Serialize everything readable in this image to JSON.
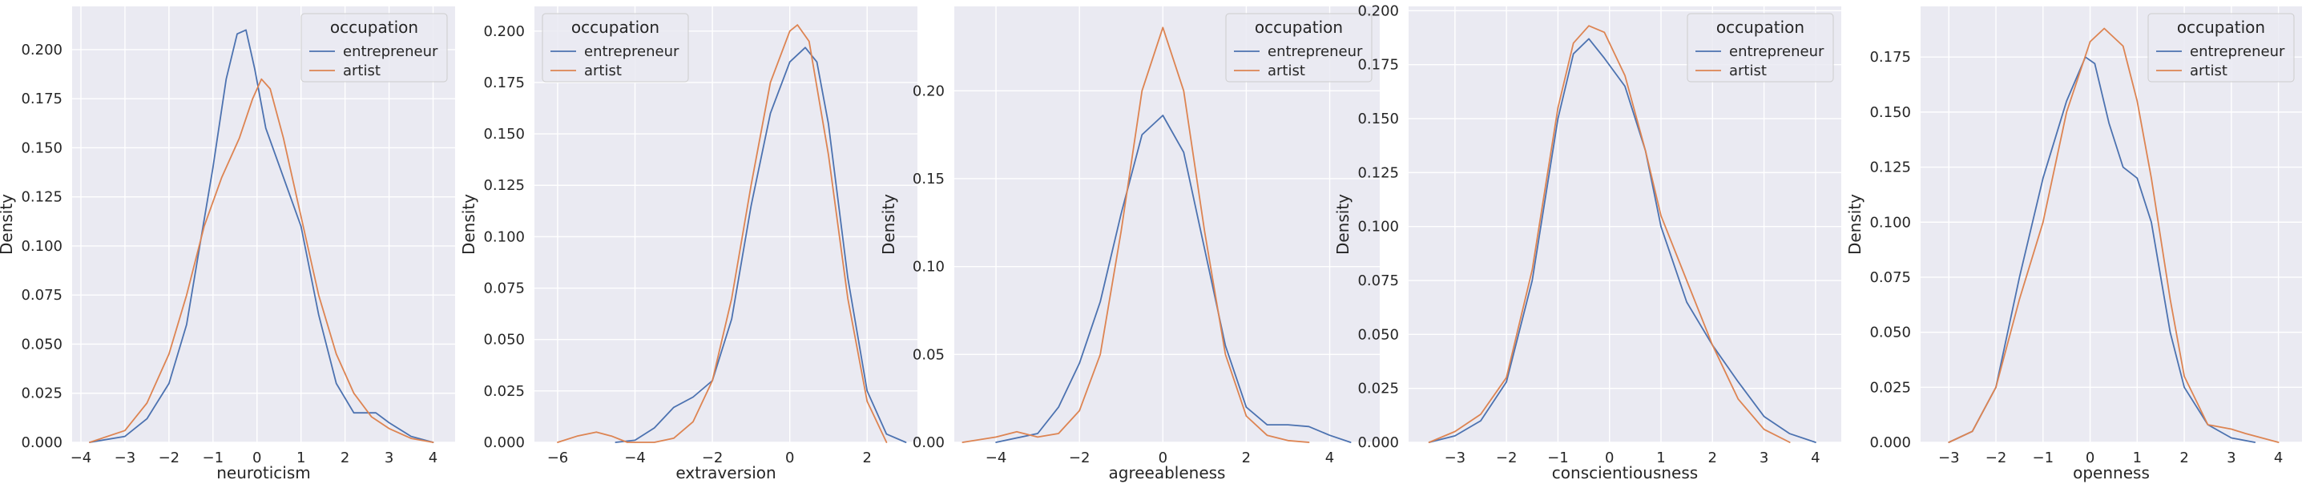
{
  "legend_title": "occupation",
  "chart_data": [
    {
      "type": "line",
      "xlabel": "neuroticism",
      "ylabel": "Density",
      "xlim": [
        -4.2,
        4.5
      ],
      "ylim": [
        0,
        0.222
      ],
      "xticks": [
        -4,
        -3,
        -2,
        -1,
        0,
        1,
        2,
        3,
        4
      ],
      "yticks": [
        0.0,
        0.025,
        0.05,
        0.075,
        0.1,
        0.125,
        0.15,
        0.175,
        0.2
      ],
      "ytick_labels": [
        "0.000",
        "0.025",
        "0.050",
        "0.075",
        "0.100",
        "0.125",
        "0.150",
        "0.175",
        "0.200"
      ],
      "grid": true,
      "legend_position": "top-right",
      "series": [
        {
          "name": "entrepreneur",
          "color": "#4c72b0",
          "x": [
            -3.8,
            -3.0,
            -2.5,
            -2.0,
            -1.6,
            -1.3,
            -1.0,
            -0.7,
            -0.45,
            -0.25,
            -0.05,
            0.2,
            0.6,
            1.0,
            1.4,
            1.8,
            2.2,
            2.5,
            2.7,
            3.0,
            3.5,
            4.0
          ],
          "y": [
            0.0,
            0.003,
            0.012,
            0.03,
            0.06,
            0.1,
            0.14,
            0.185,
            0.208,
            0.21,
            0.19,
            0.16,
            0.135,
            0.11,
            0.065,
            0.03,
            0.015,
            0.015,
            0.015,
            0.01,
            0.003,
            0.0
          ]
        },
        {
          "name": "artist",
          "color": "#dd8452",
          "x": [
            -3.8,
            -3.0,
            -2.5,
            -2.0,
            -1.6,
            -1.2,
            -0.8,
            -0.4,
            -0.1,
            0.1,
            0.3,
            0.6,
            1.0,
            1.4,
            1.8,
            2.2,
            2.6,
            3.0,
            3.5,
            4.0
          ],
          "y": [
            0.0,
            0.006,
            0.02,
            0.045,
            0.075,
            0.11,
            0.135,
            0.155,
            0.175,
            0.185,
            0.18,
            0.155,
            0.115,
            0.075,
            0.045,
            0.025,
            0.013,
            0.007,
            0.002,
            0.0
          ]
        }
      ]
    },
    {
      "type": "line",
      "xlabel": "extraversion",
      "ylabel": "Density",
      "xlim": [
        -6.6,
        3.3
      ],
      "ylim": [
        0,
        0.212
      ],
      "xticks": [
        -6,
        -4,
        -2,
        0,
        2
      ],
      "yticks": [
        0.0,
        0.025,
        0.05,
        0.075,
        0.1,
        0.125,
        0.15,
        0.175,
        0.2
      ],
      "ytick_labels": [
        "0.000",
        "0.025",
        "0.050",
        "0.075",
        "0.100",
        "0.125",
        "0.150",
        "0.175",
        "0.200"
      ],
      "grid": true,
      "legend_position": "top-left",
      "series": [
        {
          "name": "entrepreneur",
          "color": "#4c72b0",
          "x": [
            -4.5,
            -4.0,
            -3.5,
            -3.0,
            -2.5,
            -2.0,
            -1.5,
            -1.0,
            -0.5,
            0.0,
            0.4,
            0.7,
            1.0,
            1.5,
            2.0,
            2.5,
            3.0
          ],
          "y": [
            0.0,
            0.001,
            0.007,
            0.017,
            0.022,
            0.03,
            0.06,
            0.115,
            0.16,
            0.185,
            0.192,
            0.185,
            0.155,
            0.08,
            0.025,
            0.004,
            0.0
          ]
        },
        {
          "name": "artist",
          "color": "#dd8452",
          "x": [
            -6.0,
            -5.5,
            -5.0,
            -4.6,
            -4.2,
            -3.5,
            -3.0,
            -2.5,
            -2.0,
            -1.5,
            -1.0,
            -0.5,
            0.0,
            0.2,
            0.5,
            1.0,
            1.5,
            2.0,
            2.5
          ],
          "y": [
            0.0,
            0.003,
            0.005,
            0.003,
            0.0,
            0.0,
            0.002,
            0.01,
            0.03,
            0.07,
            0.125,
            0.175,
            0.2,
            0.203,
            0.195,
            0.14,
            0.07,
            0.02,
            0.0
          ]
        }
      ]
    },
    {
      "type": "line",
      "xlabel": "agreeableness",
      "ylabel": "Density",
      "xlim": [
        -5.0,
        5.2
      ],
      "ylim": [
        0,
        0.248
      ],
      "xticks": [
        -4,
        -2,
        0,
        2,
        4
      ],
      "yticks": [
        0.0,
        0.05,
        0.1,
        0.15,
        0.2
      ],
      "ytick_labels": [
        "0.00",
        "0.05",
        "0.10",
        "0.15",
        "0.20"
      ],
      "grid": true,
      "legend_position": "top-right",
      "series": [
        {
          "name": "entrepreneur",
          "color": "#4c72b0",
          "x": [
            -4.0,
            -3.0,
            -2.5,
            -2.0,
            -1.5,
            -1.0,
            -0.5,
            0.0,
            0.5,
            1.0,
            1.5,
            2.0,
            2.5,
            3.0,
            3.5,
            4.0,
            4.5
          ],
          "y": [
            0.0,
            0.005,
            0.02,
            0.045,
            0.08,
            0.13,
            0.175,
            0.186,
            0.165,
            0.11,
            0.055,
            0.02,
            0.01,
            0.01,
            0.009,
            0.004,
            0.0
          ]
        },
        {
          "name": "artist",
          "color": "#dd8452",
          "x": [
            -4.8,
            -4.0,
            -3.5,
            -3.0,
            -2.5,
            -2.0,
            -1.5,
            -1.0,
            -0.5,
            0.0,
            0.5,
            1.0,
            1.5,
            2.0,
            2.5,
            3.0,
            3.5
          ],
          "y": [
            0.0,
            0.003,
            0.006,
            0.003,
            0.005,
            0.018,
            0.05,
            0.12,
            0.2,
            0.236,
            0.2,
            0.12,
            0.05,
            0.015,
            0.004,
            0.001,
            0.0
          ]
        }
      ]
    },
    {
      "type": "line",
      "xlabel": "conscientiousness",
      "ylabel": "Density",
      "xlim": [
        -3.9,
        4.5
      ],
      "ylim": [
        0,
        0.202
      ],
      "xticks": [
        -3,
        -2,
        -1,
        0,
        1,
        2,
        3,
        4
      ],
      "yticks": [
        0.0,
        0.025,
        0.05,
        0.075,
        0.1,
        0.125,
        0.15,
        0.175,
        0.2
      ],
      "ytick_labels": [
        "0.000",
        "0.025",
        "0.050",
        "0.075",
        "0.100",
        "0.125",
        "0.150",
        "0.175",
        "0.200"
      ],
      "grid": true,
      "legend_position": "top-right",
      "series": [
        {
          "name": "entrepreneur",
          "color": "#4c72b0",
          "x": [
            -3.5,
            -3.0,
            -2.5,
            -2.0,
            -1.5,
            -1.0,
            -0.7,
            -0.4,
            -0.1,
            0.3,
            0.7,
            1.0,
            1.5,
            2.0,
            2.5,
            3.0,
            3.5,
            4.0
          ],
          "y": [
            0.0,
            0.003,
            0.01,
            0.028,
            0.075,
            0.15,
            0.18,
            0.187,
            0.178,
            0.165,
            0.135,
            0.1,
            0.065,
            0.045,
            0.028,
            0.012,
            0.004,
            0.0
          ]
        },
        {
          "name": "artist",
          "color": "#dd8452",
          "x": [
            -3.5,
            -3.0,
            -2.5,
            -2.0,
            -1.5,
            -1.0,
            -0.7,
            -0.4,
            -0.1,
            0.3,
            0.7,
            1.0,
            1.5,
            2.0,
            2.5,
            3.0,
            3.5
          ],
          "y": [
            0.0,
            0.005,
            0.013,
            0.03,
            0.08,
            0.155,
            0.185,
            0.193,
            0.19,
            0.17,
            0.135,
            0.105,
            0.075,
            0.045,
            0.02,
            0.006,
            0.0
          ]
        }
      ]
    },
    {
      "type": "line",
      "xlabel": "openness",
      "ylabel": "Density",
      "xlim": [
        -3.6,
        4.5
      ],
      "ylim": [
        0,
        0.198
      ],
      "xticks": [
        -3,
        -2,
        -1,
        0,
        1,
        2,
        3,
        4
      ],
      "yticks": [
        0.0,
        0.025,
        0.05,
        0.075,
        0.1,
        0.125,
        0.15,
        0.175
      ],
      "ytick_labels": [
        "0.000",
        "0.025",
        "0.050",
        "0.075",
        "0.100",
        "0.125",
        "0.150",
        "0.175"
      ],
      "grid": true,
      "legend_position": "top-right",
      "series": [
        {
          "name": "entrepreneur",
          "color": "#4c72b0",
          "x": [
            -3.0,
            -2.5,
            -2.0,
            -1.5,
            -1.0,
            -0.5,
            -0.1,
            0.1,
            0.4,
            0.7,
            1.0,
            1.3,
            1.7,
            2.0,
            2.5,
            3.0,
            3.5
          ],
          "y": [
            0.0,
            0.005,
            0.025,
            0.075,
            0.12,
            0.155,
            0.175,
            0.172,
            0.145,
            0.125,
            0.12,
            0.1,
            0.05,
            0.025,
            0.008,
            0.002,
            0.0
          ]
        },
        {
          "name": "artist",
          "color": "#dd8452",
          "x": [
            -3.0,
            -2.5,
            -2.0,
            -1.5,
            -1.0,
            -0.5,
            0.0,
            0.3,
            0.7,
            1.0,
            1.3,
            1.7,
            2.0,
            2.5,
            3.0,
            3.3,
            4.0
          ],
          "y": [
            0.0,
            0.005,
            0.025,
            0.065,
            0.1,
            0.15,
            0.182,
            0.188,
            0.18,
            0.155,
            0.12,
            0.065,
            0.03,
            0.008,
            0.006,
            0.004,
            0.0
          ]
        }
      ]
    }
  ]
}
